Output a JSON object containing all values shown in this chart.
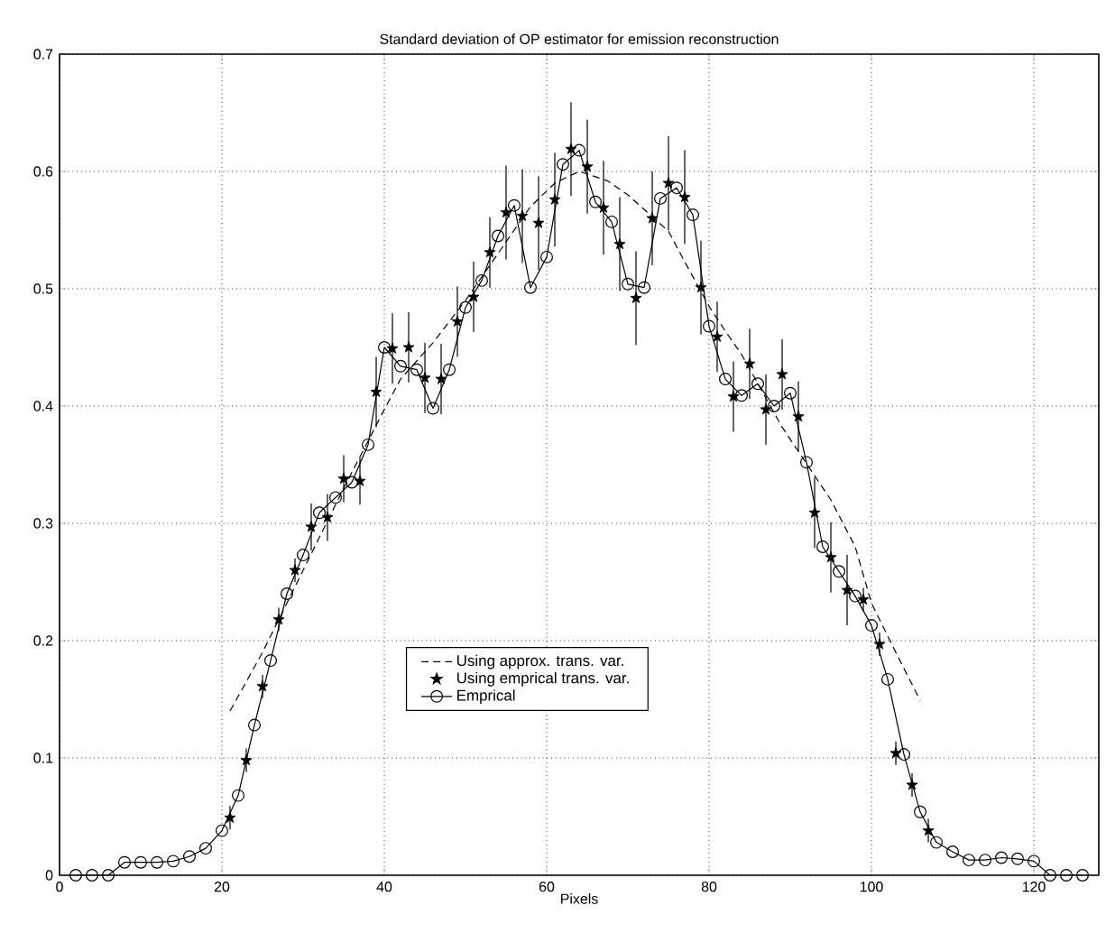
{
  "chart_data": {
    "type": "line",
    "title": "Standard deviation of OP estimator for emission reconstruction",
    "xlabel": "Pixels",
    "xlim": [
      0,
      128
    ],
    "xticks": [
      0,
      20,
      40,
      60,
      80,
      100,
      120
    ],
    "ylim": [
      0,
      0.7
    ],
    "yticks": [
      0,
      0.1,
      0.2,
      0.3,
      0.4,
      0.5,
      0.6,
      0.7
    ],
    "grid": true,
    "legend": "bottom",
    "series": [
      {
        "name": "Using approx. trans. var.",
        "color": "#000000",
        "marker": "none",
        "line_style": "dashed",
        "x": [
          21,
          23,
          25,
          30,
          35,
          40,
          42,
          46,
          50,
          54,
          58,
          61,
          64,
          67.5,
          70,
          75,
          77,
          80,
          82,
          84,
          89,
          95,
          98,
          100,
          103,
          106
        ],
        "values": [
          0.14,
          0.165,
          0.19,
          0.26,
          0.33,
          0.397,
          0.423,
          0.454,
          0.49,
          0.53,
          0.57,
          0.59,
          0.6,
          0.592,
          0.58,
          0.549,
          0.523,
          0.485,
          0.464,
          0.444,
          0.382,
          0.32,
          0.28,
          0.232,
          0.19,
          0.149
        ]
      },
      {
        "name": "Using emprical trans. var.",
        "type": "scatter",
        "color": "#000000",
        "marker": "star",
        "x": [
          21,
          23,
          25,
          27,
          29,
          31,
          33,
          35,
          37,
          39,
          41,
          43,
          45,
          47,
          49,
          51,
          53,
          55,
          57,
          59,
          61,
          63,
          65,
          67,
          69,
          71,
          73,
          75,
          77,
          79,
          81,
          83,
          85,
          87,
          89,
          91,
          93,
          95,
          97,
          99,
          101,
          103,
          105,
          107
        ],
        "values": [
          0.049,
          0.098,
          0.161,
          0.218,
          0.26,
          0.297,
          0.305,
          0.338,
          0.336,
          0.412,
          0.449,
          0.45,
          0.424,
          0.423,
          0.472,
          0.493,
          0.531,
          0.565,
          0.562,
          0.556,
          0.576,
          0.619,
          0.604,
          0.569,
          0.538,
          0.492,
          0.56,
          0.59,
          0.578,
          0.501,
          0.459,
          0.408,
          0.436,
          0.397,
          0.427,
          0.391,
          0.309,
          0.271,
          0.243,
          0.235,
          0.197,
          0.104,
          0.077,
          0.038
        ],
        "errors": [
          0.01,
          0.01,
          0.01,
          0.01,
          0.01,
          0.02,
          0.02,
          0.02,
          0.02,
          0.03,
          0.03,
          0.03,
          0.03,
          0.03,
          0.03,
          0.03,
          0.03,
          0.04,
          0.04,
          0.04,
          0.04,
          0.04,
          0.04,
          0.04,
          0.04,
          0.04,
          0.04,
          0.04,
          0.04,
          0.04,
          0.03,
          0.03,
          0.03,
          0.03,
          0.03,
          0.03,
          0.03,
          0.03,
          0.03,
          0.01,
          0.01,
          0.01,
          0.01,
          0.01
        ]
      },
      {
        "name": "Emprical",
        "color": "#000000",
        "marker": "circle",
        "line_style": "solid",
        "x": [
          2,
          4,
          6,
          8,
          10,
          12,
          14,
          16,
          18,
          20,
          22,
          24,
          26,
          28,
          30,
          32,
          34,
          36,
          38,
          40,
          42,
          44,
          46,
          48,
          50,
          52,
          54,
          56,
          58,
          60,
          62,
          64,
          66,
          68,
          70,
          72,
          74,
          76,
          78,
          80,
          82,
          84,
          86,
          88,
          90,
          92,
          94,
          96,
          98,
          100,
          102,
          104,
          106,
          108,
          110,
          112,
          114,
          116,
          118,
          120,
          122,
          124,
          126
        ],
        "values": [
          0,
          0,
          0,
          0.011,
          0.011,
          0.011,
          0.012,
          0.016,
          0.023,
          0.038,
          0.068,
          0.128,
          0.183,
          0.24,
          0.273,
          0.309,
          0.322,
          0.335,
          0.367,
          0.45,
          0.434,
          0.431,
          0.398,
          0.431,
          0.484,
          0.507,
          0.545,
          0.571,
          0.501,
          0.527,
          0.606,
          0.618,
          0.574,
          0.557,
          0.504,
          0.501,
          0.577,
          0.586,
          0.563,
          0.468,
          0.423,
          0.409,
          0.419,
          0.4,
          0.411,
          0.352,
          0.28,
          0.259,
          0.238,
          0.213,
          0.167,
          0.103,
          0.054,
          0.028,
          0.02,
          0.013,
          0.013,
          0.015,
          0.014,
          0.012,
          0,
          0,
          0
        ]
      }
    ]
  }
}
